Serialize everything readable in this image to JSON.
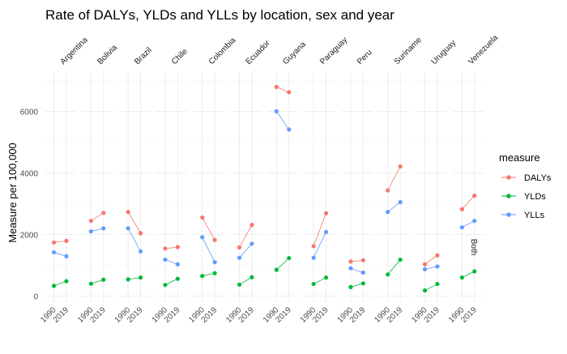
{
  "chart_data": {
    "type": "line",
    "title": "Rate of DALYs, YLDs and YLLs by location, sex and year",
    "ylabel": "Measure per 100,000",
    "xlabel": "",
    "x": [
      "1990",
      "2019"
    ],
    "ylim": [
      -200,
      7300
    ],
    "yticks": [
      0,
      2000,
      4000,
      6000
    ],
    "ytick_labels": [
      "0",
      "2000",
      "4000",
      "6000"
    ],
    "grid": true,
    "facet_row_label": "Both",
    "legend": {
      "title": "measure",
      "position": "right"
    },
    "facets": [
      "Argentina",
      "Bolivia",
      "Brazil",
      "Chile",
      "Colombia",
      "Ecuador",
      "Guyana",
      "Paraguay",
      "Peru",
      "Suriname",
      "Uruguay",
      "Venezuela"
    ],
    "series": [
      {
        "name": "DALYs",
        "color": "#F8766D",
        "values": [
          [
            1740,
            1790
          ],
          [
            2440,
            2700
          ],
          [
            2730,
            2040
          ],
          [
            1540,
            1590
          ],
          [
            2550,
            1820
          ],
          [
            1580,
            2310
          ],
          [
            6790,
            6620
          ],
          [
            1620,
            2690
          ],
          [
            1120,
            1160
          ],
          [
            3430,
            4210
          ],
          [
            1030,
            1320
          ],
          [
            2820,
            3260
          ]
        ]
      },
      {
        "name": "YLDs",
        "color": "#00BA38",
        "values": [
          [
            330,
            480
          ],
          [
            400,
            530
          ],
          [
            540,
            600
          ],
          [
            360,
            560
          ],
          [
            650,
            740
          ],
          [
            370,
            610
          ],
          [
            850,
            1230
          ],
          [
            390,
            600
          ],
          [
            290,
            410
          ],
          [
            700,
            1180
          ],
          [
            180,
            390
          ],
          [
            600,
            800
          ]
        ]
      },
      {
        "name": "YLLs",
        "color": "#619CFF",
        "values": [
          [
            1420,
            1290
          ],
          [
            2100,
            2200
          ],
          [
            2200,
            1450
          ],
          [
            1180,
            1030
          ],
          [
            1910,
            1100
          ],
          [
            1240,
            1700
          ],
          [
            6000,
            5410
          ],
          [
            1240,
            2080
          ],
          [
            900,
            760
          ],
          [
            2730,
            3050
          ],
          [
            870,
            960
          ],
          [
            2230,
            2440
          ]
        ]
      }
    ]
  }
}
